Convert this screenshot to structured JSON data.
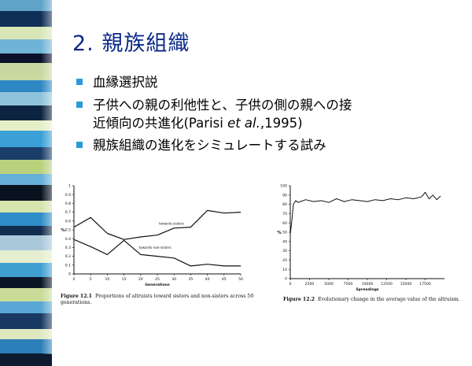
{
  "slide": {
    "title": "2. 親族組織",
    "bullets": [
      {
        "text": "血縁選択説"
      },
      {
        "text_line1": "子供への親の利他性と、子供の側の親への接",
        "text_line2_a": "近傾向の共進化(Parisi ",
        "text_line2_italic": "et al.",
        "text_line2_b": ",1995)"
      },
      {
        "text": "親族組織の進化をシミュレートする試み"
      }
    ],
    "bullet_color": "#2a9ad8",
    "title_color": "#0b2a8a"
  },
  "strip_colors": [
    "#5fa3c9",
    "#0f2f57",
    "#d9e6b8",
    "#6fb3d6",
    "#0a0f2a",
    "#c7d8a0",
    "#2c87c3",
    "#8fc3dc",
    "#0d2440",
    "#e7efc6",
    "#3aa0d6",
    "#1a3d6a",
    "#b9d07d",
    "#64b0d8",
    "#08121f",
    "#d6e4ae",
    "#2f8dc7",
    "#122c4e",
    "#a9c8da",
    "#e6eed0",
    "#3f9fd1",
    "#0a1626",
    "#c8dc98",
    "#5aa7d5",
    "#183a62",
    "#dfe9c0",
    "#2b7fb8",
    "#0c1b30"
  ],
  "figure1": {
    "caption_label": "Figure 12.1",
    "caption_text": "Proportions of altruists toward sisters and non-sisters across 50 generations.",
    "annotation_sisters": "towards sisters",
    "annotation_non_sisters": "towards non-sisters"
  },
  "figure2": {
    "caption_label": "Figure 12.2",
    "caption_text": "Evolutionary change in the average value of the altruism."
  },
  "chart_data": [
    {
      "type": "line",
      "xlabel": "Generations",
      "ylabel": "%",
      "xlim": [
        0,
        50
      ],
      "ylim": [
        0,
        1
      ],
      "xticks": [
        "0",
        "5",
        "10",
        "15",
        "20",
        "25",
        "30",
        "35",
        "40",
        "45",
        "50"
      ],
      "yticks": [
        "0",
        "0.1",
        "0.2",
        "0.3",
        "0.4",
        "0.5",
        "0.6",
        "0.7",
        "0.8",
        "0.9",
        "1"
      ],
      "x": [
        0,
        5,
        10,
        15,
        20,
        25,
        30,
        35,
        40,
        45,
        50
      ],
      "series": [
        {
          "name": "towards sisters",
          "values": [
            0.53,
            0.64,
            0.46,
            0.39,
            0.42,
            0.44,
            0.52,
            0.53,
            0.72,
            0.69,
            0.7
          ]
        },
        {
          "name": "towards non-sisters",
          "values": [
            0.39,
            0.31,
            0.22,
            0.38,
            0.22,
            0.2,
            0.18,
            0.09,
            0.11,
            0.09,
            0.09
          ]
        }
      ],
      "grid": false
    },
    {
      "type": "line",
      "xlabel": "Spreadings",
      "ylabel": "%",
      "xlim": [
        0,
        20000
      ],
      "ylim": [
        0,
        100
      ],
      "xticks": [
        "0",
        "2500",
        "5000",
        "7500",
        "10000",
        "12500",
        "15000",
        "17500"
      ],
      "yticks": [
        "0",
        "10",
        "20",
        "30",
        "40",
        "50",
        "60",
        "70",
        "80",
        "90",
        "100"
      ],
      "x": [
        0,
        200,
        400,
        700,
        1000,
        2000,
        3000,
        4000,
        5000,
        6000,
        7000,
        8000,
        9000,
        10000,
        11000,
        12000,
        13000,
        14000,
        15000,
        16000,
        17000,
        17500,
        18000,
        18500,
        19000,
        19500
      ],
      "series": [
        {
          "values": [
            48,
            62,
            80,
            84,
            82,
            85,
            83,
            84,
            82,
            86,
            83,
            85,
            84,
            83,
            85,
            84,
            86,
            85,
            87,
            86,
            88,
            93,
            86,
            90,
            85,
            89
          ]
        }
      ],
      "grid": false
    }
  ]
}
